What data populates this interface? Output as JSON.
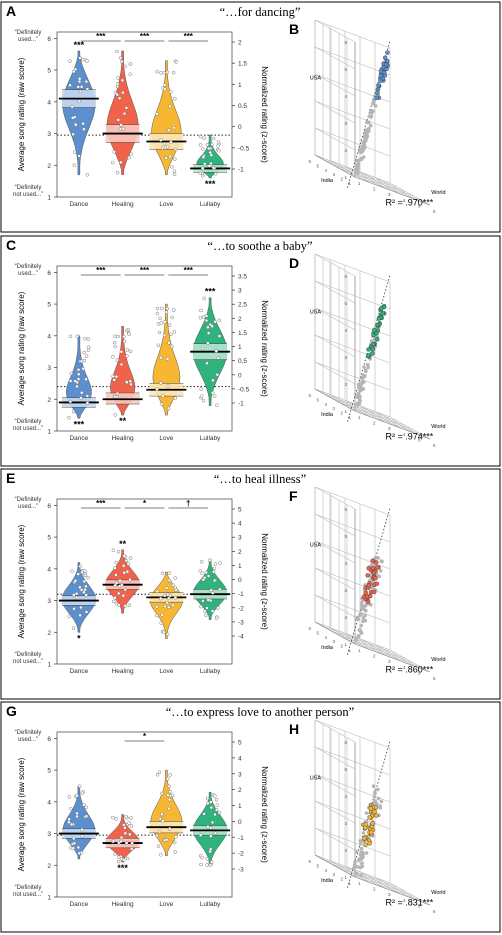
{
  "colors": {
    "dance": "#5b8fce",
    "healing": "#f0634a",
    "love": "#f7b733",
    "lullaby": "#2fb37d",
    "grey_point": "#b5b5b5",
    "frame": "#000000"
  },
  "chart_data": [
    {
      "type": "violin",
      "panel": "A",
      "title": "“…for dancing”",
      "ylabel": "Average song rating (raw score)",
      "y2label": "Normalized rating (z-score)",
      "top_anchor": "“Definitely used...”",
      "bottom_anchor": "“Definitely not used...”",
      "ylim": [
        1,
        6.2
      ],
      "y2_ticks": [
        "2",
        "1.5",
        "1",
        "0.5",
        "0",
        "-0.5",
        "-1"
      ],
      "categories": [
        "Dance",
        "Healing",
        "Love",
        "Lullaby"
      ],
      "series": [
        {
          "category": "Dance",
          "mean": 4.1,
          "ci_low": 3.82,
          "ci_high": 4.38,
          "min": 1.7,
          "max": 5.6,
          "annotation": "***"
        },
        {
          "category": "Healing",
          "mean": 3.0,
          "ci_low": 2.72,
          "ci_high": 3.28,
          "min": 1.7,
          "max": 5.6,
          "annotation": ""
        },
        {
          "category": "Love",
          "mean": 2.75,
          "ci_low": 2.5,
          "ci_high": 3.0,
          "min": 1.7,
          "max": 5.3,
          "annotation": ""
        },
        {
          "category": "Lullaby",
          "mean": 1.9,
          "ci_low": 1.78,
          "ci_high": 2.02,
          "min": 1.6,
          "max": 2.95,
          "annotation": "***"
        }
      ],
      "brackets": [
        {
          "from": "Dance",
          "to": "Healing",
          "label": "***"
        },
        {
          "from": "Healing",
          "to": "Love",
          "label": "***"
        },
        {
          "from": "Love",
          "to": "Lullaby",
          "label": "***"
        }
      ],
      "reference_line": 2.95
    },
    {
      "type": "scatter3d",
      "panel": "B",
      "axis_labels": [
        "USA",
        "India",
        "World"
      ],
      "r2": "R² = .970***",
      "highlight": "Dance"
    },
    {
      "type": "violin",
      "panel": "C",
      "title": "“…to soothe a baby”",
      "ylabel": "Average song rating (raw score)",
      "y2label": "Normalized rating (z-score)",
      "top_anchor": "“Definitely used...”",
      "bottom_anchor": "“Definitely not used...”",
      "ylim": [
        1,
        6.2
      ],
      "y2_ticks": [
        "3.5",
        "3",
        "2.5",
        "2",
        "1.5",
        "1",
        "0.5",
        "0",
        "-0.5",
        "-1"
      ],
      "categories": [
        "Dance",
        "Healing",
        "Love",
        "Lullaby"
      ],
      "series": [
        {
          "category": "Dance",
          "mean": 1.9,
          "ci_low": 1.75,
          "ci_high": 2.05,
          "min": 1.4,
          "max": 4.0,
          "annotation": "***"
        },
        {
          "category": "Healing",
          "mean": 2.0,
          "ci_low": 1.85,
          "ci_high": 2.2,
          "min": 1.5,
          "max": 4.3,
          "annotation": "**"
        },
        {
          "category": "Love",
          "mean": 2.3,
          "ci_low": 2.1,
          "ci_high": 2.5,
          "min": 1.5,
          "max": 5.0,
          "annotation": ""
        },
        {
          "category": "Lullaby",
          "mean": 3.5,
          "ci_low": 3.25,
          "ci_high": 3.75,
          "min": 1.8,
          "max": 5.2,
          "annotation": "***"
        }
      ],
      "brackets": [
        {
          "from": "Dance",
          "to": "Healing",
          "label": "***"
        },
        {
          "from": "Healing",
          "to": "Love",
          "label": "***"
        },
        {
          "from": "Love",
          "to": "Lullaby",
          "label": "***"
        }
      ],
      "reference_line": 2.4
    },
    {
      "type": "scatter3d",
      "panel": "D",
      "axis_labels": [
        "USA",
        "India",
        "World"
      ],
      "r2": "R² = .974***",
      "highlight": "Lullaby"
    },
    {
      "type": "violin",
      "panel": "E",
      "title": "“…to heal illness”",
      "ylabel": "Average song rating (raw score)",
      "y2label": "Normalized rating (z-score)",
      "top_anchor": "“Definitely used...”",
      "bottom_anchor": "“Definitely not used...”",
      "ylim": [
        1,
        6.2
      ],
      "y2_ticks": [
        "5",
        "4",
        "3",
        "2",
        "1",
        "0",
        "-1",
        "-2",
        "-3",
        "-4"
      ],
      "categories": [
        "Dance",
        "Healing",
        "Love",
        "Lullaby"
      ],
      "series": [
        {
          "category": "Dance",
          "mean": 3.0,
          "ci_low": 2.85,
          "ci_high": 3.15,
          "min": 2.0,
          "max": 4.2,
          "annotation": "*"
        },
        {
          "category": "Healing",
          "mean": 3.5,
          "ci_low": 3.35,
          "ci_high": 3.65,
          "min": 2.6,
          "max": 4.6,
          "annotation": "**"
        },
        {
          "category": "Love",
          "mean": 3.1,
          "ci_low": 2.95,
          "ci_high": 3.25,
          "min": 1.8,
          "max": 3.9,
          "annotation": ""
        },
        {
          "category": "Lullaby",
          "mean": 3.2,
          "ci_low": 3.05,
          "ci_high": 3.35,
          "min": 2.4,
          "max": 4.3,
          "annotation": ""
        }
      ],
      "brackets": [
        {
          "from": "Dance",
          "to": "Healing",
          "label": "***"
        },
        {
          "from": "Healing",
          "to": "Love",
          "label": "*"
        },
        {
          "from": "Love",
          "to": "Lullaby",
          "label": "†"
        }
      ],
      "reference_line": 3.2
    },
    {
      "type": "scatter3d",
      "panel": "F",
      "axis_labels": [
        "USA",
        "India",
        "World"
      ],
      "r2": "R² = .860***",
      "highlight": "Healing"
    },
    {
      "type": "violin",
      "panel": "G",
      "title": "“…to express love to another person”",
      "ylabel": "Average song rating (raw score)",
      "y2label": "Normalized rating (z-score)",
      "top_anchor": "“Definitely used...”",
      "bottom_anchor": "“Definitely not used...”",
      "ylim": [
        1,
        6.2
      ],
      "y2_ticks": [
        "5",
        "4",
        "3",
        "2",
        "1",
        "0",
        "-1",
        "-2",
        "-3"
      ],
      "categories": [
        "Dance",
        "Healing",
        "Love",
        "Lullaby"
      ],
      "series": [
        {
          "category": "Dance",
          "mean": 3.0,
          "ci_low": 2.85,
          "ci_high": 3.15,
          "min": 2.2,
          "max": 4.5,
          "annotation": ""
        },
        {
          "category": "Healing",
          "mean": 2.7,
          "ci_low": 2.55,
          "ci_high": 2.85,
          "min": 2.1,
          "max": 3.6,
          "annotation": "***"
        },
        {
          "category": "Love",
          "mean": 3.2,
          "ci_low": 3.02,
          "ci_high": 3.38,
          "min": 2.3,
          "max": 5.0,
          "annotation": ""
        },
        {
          "category": "Lullaby",
          "mean": 3.1,
          "ci_low": 2.95,
          "ci_high": 3.25,
          "min": 2.0,
          "max": 4.3,
          "annotation": ""
        }
      ],
      "brackets": [
        {
          "from": "Healing",
          "to": "Love",
          "label": "*"
        }
      ],
      "reference_line": 2.95
    },
    {
      "type": "scatter3d",
      "panel": "H",
      "axis_labels": [
        "USA",
        "India",
        "World"
      ],
      "r2": "R² = .831***",
      "highlight": "Love"
    }
  ]
}
